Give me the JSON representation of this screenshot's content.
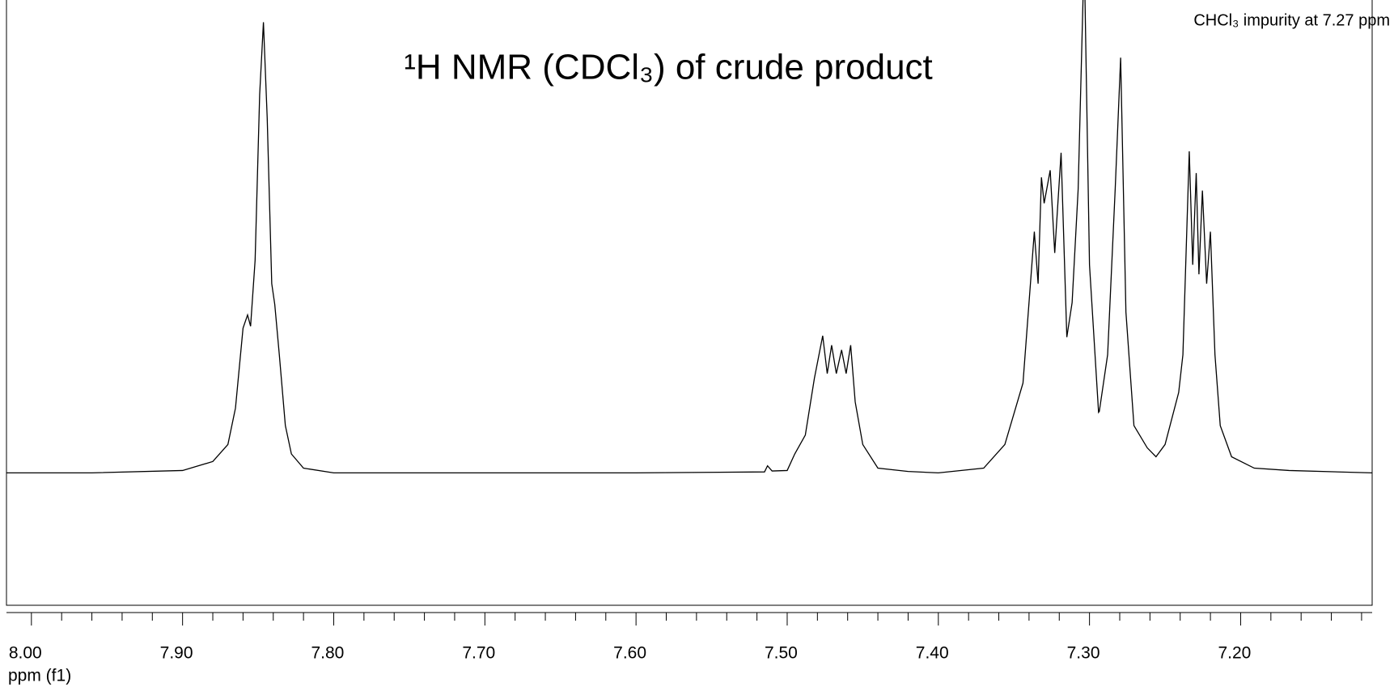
{
  "chart_data": {
    "type": "line",
    "title": "¹H NMR (CDCl₃) of crude product",
    "annotation": "CHCl₃ impurity at 7.27 ppm",
    "xlabel": "ppm (f1)",
    "reverse_x": true,
    "color": "#000000",
    "xlim": [
      8.0165,
      7.113
    ],
    "ylim": [
      -0.28,
      1.0
    ],
    "xticks": [
      {
        "value": 8,
        "label": "8.00"
      },
      {
        "value": 7.9,
        "label": "7.90"
      },
      {
        "value": 7.8,
        "label": "7.80"
      },
      {
        "value": 7.7,
        "label": "7.70"
      },
      {
        "value": 7.6,
        "label": "7.60"
      },
      {
        "value": 7.5,
        "label": "7.50"
      },
      {
        "value": 7.4,
        "label": "7.40"
      },
      {
        "value": 7.3,
        "label": "7.30"
      },
      {
        "value": 7.2,
        "label": "7.20"
      }
    ],
    "xminor_ticks": [
      7.98,
      7.96,
      7.94,
      7.92,
      7.88,
      7.86,
      7.84,
      7.82,
      7.78,
      7.76,
      7.74,
      7.72,
      7.68,
      7.66,
      7.64,
      7.62,
      7.58,
      7.56,
      7.54,
      7.52,
      7.48,
      7.46,
      7.44,
      7.42,
      7.38,
      7.36,
      7.34,
      7.32,
      7.28,
      7.26,
      7.24,
      7.22,
      7.18,
      7.16,
      7.14,
      7.12
    ],
    "x": [
      8.0165,
      7.96,
      7.9,
      7.88,
      7.87,
      7.865,
      7.86,
      7.857,
      7.855,
      7.852,
      7.849,
      7.8465,
      7.844,
      7.841,
      7.839,
      7.836,
      7.832,
      7.828,
      7.82,
      7.8,
      7.7,
      7.6,
      7.515,
      7.513,
      7.51,
      7.5,
      7.495,
      7.488,
      7.482,
      7.4765,
      7.4735,
      7.4706,
      7.4675,
      7.464,
      7.461,
      7.458,
      7.455,
      7.45,
      7.44,
      7.42,
      7.4,
      7.37,
      7.356,
      7.344,
      7.3365,
      7.334,
      7.3318,
      7.33,
      7.326,
      7.323,
      7.3188,
      7.315,
      7.3115,
      7.3075,
      7.3035,
      7.3,
      7.294,
      7.2935,
      7.288,
      7.283,
      7.2794,
      7.2759,
      7.2706,
      7.2618,
      7.256,
      7.25,
      7.241,
      7.2382,
      7.234,
      7.2317,
      7.2294,
      7.2276,
      7.2253,
      7.2225,
      7.22,
      7.217,
      7.2135,
      7.206,
      7.191,
      7.168,
      7.113
    ],
    "values": [
      0.0,
      0.0,
      0.005,
      0.024,
      0.06,
      0.137,
      0.306,
      0.334,
      0.31,
      0.45,
      0.8,
      0.953,
      0.75,
      0.4,
      0.356,
      0.25,
      0.1,
      0.04,
      0.01,
      0.0,
      0.0,
      0.0,
      0.002,
      0.015,
      0.004,
      0.005,
      0.04,
      0.08,
      0.2,
      0.29,
      0.21,
      0.27,
      0.21,
      0.26,
      0.21,
      0.27,
      0.15,
      0.06,
      0.01,
      0.003,
      0.0,
      0.01,
      0.06,
      0.19,
      0.51,
      0.4,
      0.625,
      0.57,
      0.64,
      0.465,
      0.677,
      0.287,
      0.36,
      0.6,
      1.1,
      0.44,
      0.128,
      0.13,
      0.25,
      0.6,
      0.878,
      0.34,
      0.1,
      0.053,
      0.034,
      0.06,
      0.17,
      0.25,
      0.68,
      0.44,
      0.634,
      0.42,
      0.597,
      0.4,
      0.51,
      0.25,
      0.1,
      0.034,
      0.01,
      0.005,
      0.0
    ]
  }
}
